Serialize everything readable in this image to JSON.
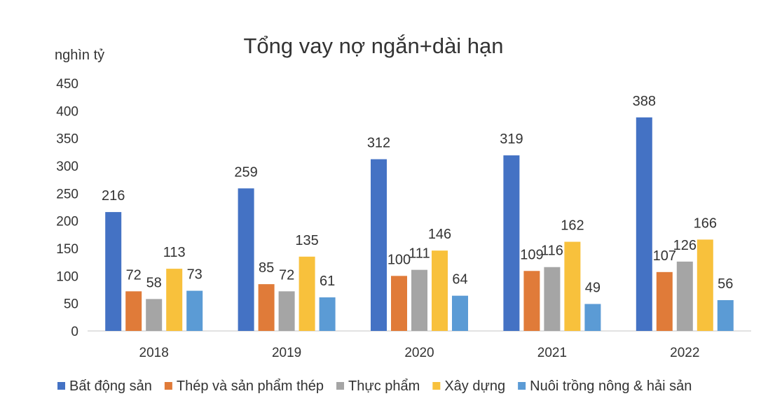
{
  "chart_data": {
    "type": "bar",
    "title": "Tổng vay nợ ngắn+dài hạn",
    "ylabel": "nghìn tỷ",
    "xlabel": "",
    "categories": [
      "2018",
      "2019",
      "2020",
      "2021",
      "2022"
    ],
    "ylim": [
      0,
      450
    ],
    "yticks": [
      0,
      50,
      100,
      150,
      200,
      250,
      300,
      350,
      400,
      450
    ],
    "grid": false,
    "legend_position": "bottom",
    "series": [
      {
        "name": "Bất động sản",
        "color": "#4472C4",
        "values": [
          216,
          259,
          312,
          319,
          388
        ]
      },
      {
        "name": "Thép và sản phẩm thép",
        "color": "#E07B39",
        "values": [
          72,
          85,
          100,
          109,
          107
        ]
      },
      {
        "name": "Thực phẩm",
        "color": "#A5A5A5",
        "values": [
          58,
          72,
          111,
          116,
          126
        ]
      },
      {
        "name": "Xây dựng",
        "color": "#F8C13C",
        "values": [
          113,
          135,
          146,
          162,
          166
        ]
      },
      {
        "name": "Nuôi trồng nông & hải sản",
        "color": "#5B9BD5",
        "values": [
          73,
          61,
          64,
          49,
          56
        ]
      }
    ]
  }
}
